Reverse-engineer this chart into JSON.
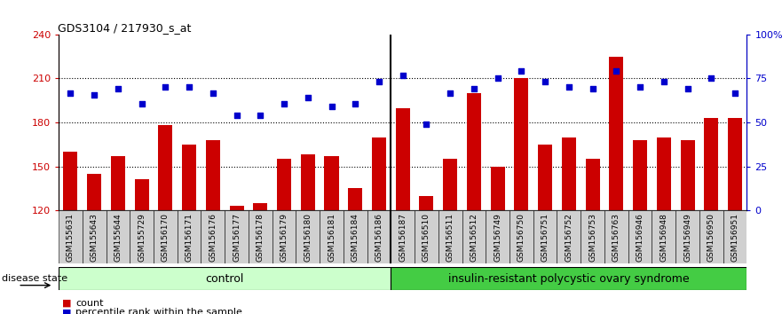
{
  "title": "GDS3104 / 217930_s_at",
  "samples": [
    "GSM155631",
    "GSM155643",
    "GSM155644",
    "GSM155729",
    "GSM156170",
    "GSM156171",
    "GSM156176",
    "GSM156177",
    "GSM156178",
    "GSM156179",
    "GSM156180",
    "GSM156181",
    "GSM156184",
    "GSM156186",
    "GSM156187",
    "GSM156510",
    "GSM156511",
    "GSM156512",
    "GSM156749",
    "GSM156750",
    "GSM156751",
    "GSM156752",
    "GSM156753",
    "GSM156763",
    "GSM156946",
    "GSM156948",
    "GSM156949",
    "GSM156950",
    "GSM156951"
  ],
  "bar_values": [
    160,
    145,
    157,
    141,
    178,
    165,
    168,
    123,
    125,
    155,
    158,
    157,
    135,
    170,
    190,
    130,
    155,
    200,
    150,
    210,
    165,
    170,
    155,
    225,
    168,
    170,
    168,
    183,
    183
  ],
  "percentile_values": [
    200,
    199,
    203,
    193,
    204,
    204,
    200,
    185,
    185,
    193,
    197,
    191,
    193,
    208,
    212,
    179,
    200,
    203,
    210,
    215,
    208,
    204,
    203,
    215,
    204,
    208,
    203,
    210,
    200
  ],
  "control_count": 14,
  "disease_count": 15,
  "y_min": 120,
  "y_max": 240,
  "y_ticks": [
    120,
    150,
    180,
    210,
    240
  ],
  "right_ticks": [
    120,
    150,
    180,
    210,
    240
  ],
  "right_tick_labels": [
    "0",
    "25",
    "50",
    "75",
    "100%"
  ],
  "bar_color": "#cc0000",
  "dot_color": "#0000cc",
  "control_bg": "#ccffcc",
  "disease_bg": "#44cc44",
  "xlabel_control": "control",
  "xlabel_disease": "insulin-resistant polycystic ovary syndrome",
  "disease_state_label": "disease state",
  "legend_bar": "count",
  "legend_dot": "percentile rank within the sample",
  "tick_label_fontsize": 6.5,
  "plot_bg": "#ffffff",
  "tick_bg": "#d0d0d0"
}
